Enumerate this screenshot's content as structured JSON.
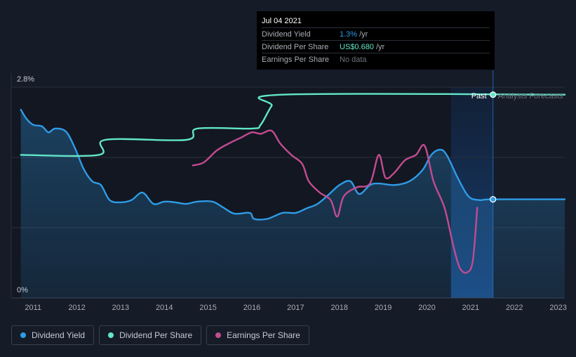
{
  "tooltip": {
    "date": "Jul 04 2021",
    "rows": [
      {
        "label": "Dividend Yield",
        "value": "1.3%",
        "unit": "/yr",
        "color": "#2f9be6"
      },
      {
        "label": "Dividend Per Share",
        "value": "US$0.680",
        "unit": "/yr",
        "color": "#63e6c7"
      },
      {
        "label": "Earnings Per Share",
        "value": "No data",
        "unit": "",
        "color": "#6e737c"
      }
    ]
  },
  "legend": [
    {
      "label": "Dividend Yield",
      "color": "#2f9be6"
    },
    {
      "label": "Dividend Per Share",
      "color": "#63e6c7"
    },
    {
      "label": "Earnings Per Share",
      "color": "#c34b8f"
    }
  ],
  "chart_data": {
    "type": "line",
    "y_axis": {
      "min": 0,
      "max": 2.8,
      "tick_labels": [
        "2.8%",
        "0%"
      ]
    },
    "x_axis": {
      "min": 2010.5,
      "max": 2023.15,
      "ticks": [
        2011,
        2012,
        2013,
        2014,
        2015,
        2016,
        2017,
        2018,
        2019,
        2020,
        2021,
        2022,
        2023
      ],
      "tick_labels": [
        "2011",
        "2012",
        "2013",
        "2014",
        "2015",
        "2016",
        "2017",
        "2018",
        "2019",
        "2020",
        "2021",
        "2022",
        "2023"
      ]
    },
    "regions": {
      "past_label": "Past",
      "forecast_label": "Analysts Forecasts",
      "divider_x": 2021.51,
      "highlight_start": 2020.55
    },
    "grid": true,
    "series": [
      {
        "name": "Dividend Yield",
        "color": "#2f9be6",
        "area": true,
        "points": [
          [
            2010.72,
            2.5
          ],
          [
            2010.85,
            2.38
          ],
          [
            2011.0,
            2.3
          ],
          [
            2011.2,
            2.28
          ],
          [
            2011.35,
            2.2
          ],
          [
            2011.5,
            2.25
          ],
          [
            2011.75,
            2.21
          ],
          [
            2011.95,
            2.0
          ],
          [
            2012.15,
            1.72
          ],
          [
            2012.35,
            1.55
          ],
          [
            2012.55,
            1.5
          ],
          [
            2012.75,
            1.3
          ],
          [
            2013.0,
            1.27
          ],
          [
            2013.25,
            1.3
          ],
          [
            2013.5,
            1.4
          ],
          [
            2013.75,
            1.25
          ],
          [
            2014.0,
            1.28
          ],
          [
            2014.25,
            1.27
          ],
          [
            2014.5,
            1.25
          ],
          [
            2014.75,
            1.28
          ],
          [
            2015.1,
            1.28
          ],
          [
            2015.35,
            1.2
          ],
          [
            2015.6,
            1.12
          ],
          [
            2015.95,
            1.13
          ],
          [
            2016.05,
            1.05
          ],
          [
            2016.35,
            1.05
          ],
          [
            2016.7,
            1.13
          ],
          [
            2017.0,
            1.13
          ],
          [
            2017.25,
            1.19
          ],
          [
            2017.5,
            1.25
          ],
          [
            2017.75,
            1.37
          ],
          [
            2018.0,
            1.5
          ],
          [
            2018.25,
            1.55
          ],
          [
            2018.45,
            1.38
          ],
          [
            2018.7,
            1.5
          ],
          [
            2018.9,
            1.52
          ],
          [
            2019.25,
            1.5
          ],
          [
            2019.6,
            1.55
          ],
          [
            2019.9,
            1.7
          ],
          [
            2020.1,
            1.9
          ],
          [
            2020.3,
            1.97
          ],
          [
            2020.45,
            1.9
          ],
          [
            2020.7,
            1.6
          ],
          [
            2020.95,
            1.35
          ],
          [
            2021.2,
            1.3
          ],
          [
            2021.51,
            1.31
          ],
          [
            2023.15,
            1.31
          ]
        ]
      },
      {
        "name": "Dividend Per Share",
        "color": "#63e6c7",
        "area": false,
        "points": [
          [
            2010.72,
            1.9
          ],
          [
            2012.5,
            1.9
          ],
          [
            2012.65,
            2.1
          ],
          [
            2014.5,
            2.1
          ],
          [
            2014.75,
            2.25
          ],
          [
            2016.0,
            2.25
          ],
          [
            2016.2,
            2.3
          ],
          [
            2016.45,
            2.55
          ],
          [
            2016.7,
            2.7
          ],
          [
            2023.15,
            2.7
          ]
        ]
      },
      {
        "name": "Earnings Per Share",
        "color": "#c34b8f",
        "area": false,
        "points": [
          [
            2014.65,
            1.76
          ],
          [
            2014.9,
            1.8
          ],
          [
            2015.2,
            1.96
          ],
          [
            2015.5,
            2.06
          ],
          [
            2015.75,
            2.13
          ],
          [
            2016.0,
            2.2
          ],
          [
            2016.2,
            2.18
          ],
          [
            2016.45,
            2.22
          ],
          [
            2016.65,
            2.05
          ],
          [
            2016.9,
            1.9
          ],
          [
            2017.15,
            1.78
          ],
          [
            2017.3,
            1.55
          ],
          [
            2017.55,
            1.4
          ],
          [
            2017.8,
            1.3
          ],
          [
            2017.95,
            1.08
          ],
          [
            2018.1,
            1.35
          ],
          [
            2018.4,
            1.47
          ],
          [
            2018.7,
            1.52
          ],
          [
            2018.9,
            1.9
          ],
          [
            2019.05,
            1.6
          ],
          [
            2019.25,
            1.66
          ],
          [
            2019.5,
            1.83
          ],
          [
            2019.75,
            1.9
          ],
          [
            2019.95,
            2.02
          ],
          [
            2020.15,
            1.55
          ],
          [
            2020.4,
            1.2
          ],
          [
            2020.6,
            0.7
          ],
          [
            2020.75,
            0.4
          ],
          [
            2020.92,
            0.34
          ],
          [
            2021.05,
            0.5
          ],
          [
            2021.15,
            1.2
          ]
        ]
      }
    ],
    "markers": [
      {
        "series": "Dividend Per Share",
        "x": 2021.51,
        "y": 2.7
      },
      {
        "series": "Dividend Yield",
        "x": 2021.51,
        "y": 1.31
      }
    ]
  }
}
